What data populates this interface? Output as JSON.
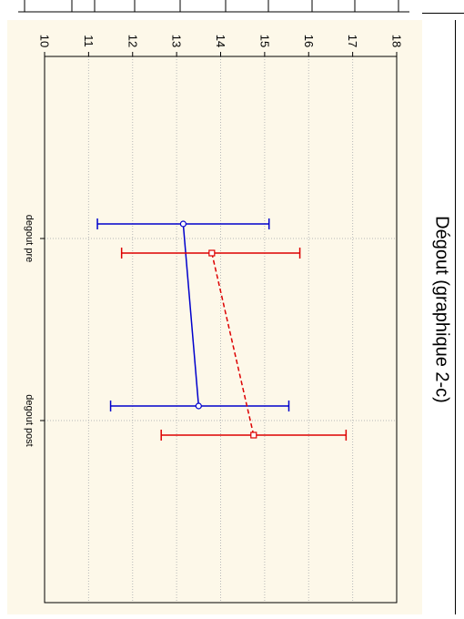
{
  "page": {
    "title": "Dégout (graphique 2-c)"
  },
  "chart_data": {
    "type": "line",
    "orientation": "rotated-90-clockwise",
    "title": "Dégout (graphique 2-c)",
    "xlabel": "",
    "ylabel": "",
    "categories": [
      "degout pre",
      "degout post"
    ],
    "ylim": [
      10,
      18
    ],
    "yticks": [
      10,
      11,
      12,
      13,
      14,
      15,
      16,
      17,
      18
    ],
    "grid": true,
    "legend": "none",
    "series": [
      {
        "color": "#0000cc",
        "line_style": "solid",
        "marker": "circle",
        "values": [
          13.15,
          13.5
        ],
        "error_low": [
          11.2,
          11.5
        ],
        "error_high": [
          15.1,
          15.55
        ]
      },
      {
        "color": "#dd0000",
        "line_style": "dashed",
        "marker": "square",
        "values": [
          13.8,
          14.75
        ],
        "error_low": [
          11.75,
          12.65
        ],
        "error_high": [
          15.8,
          16.85
        ]
      }
    ]
  }
}
